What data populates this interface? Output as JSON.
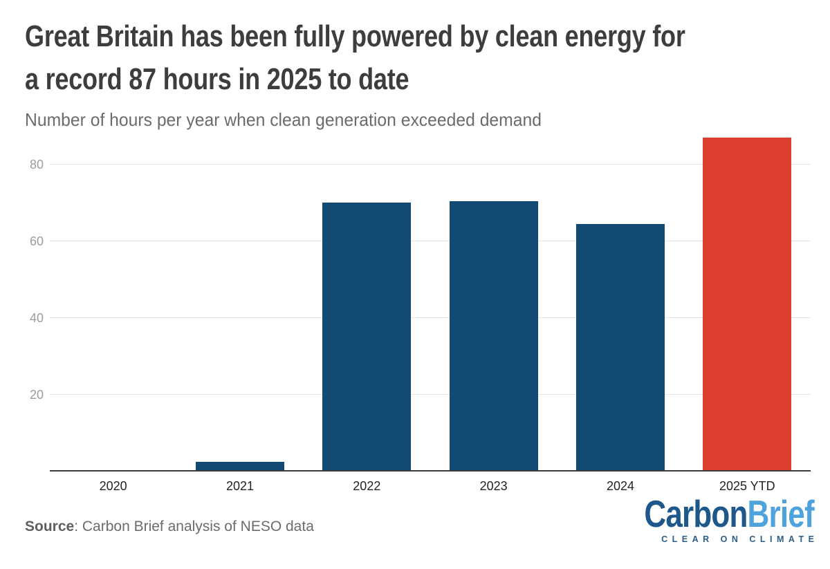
{
  "header": {
    "title_lines": [
      "Great Britain has been fully powered by clean energy for",
      "a record 87 hours in 2025 to date"
    ],
    "subtitle": "Number of hours per year when clean generation exceeded demand"
  },
  "chart_data": {
    "type": "bar",
    "title": "Great Britain has been fully powered by clean energy for a record 87 hours in 2025 to date",
    "subtitle": "Number of hours per year when clean generation exceeded demand",
    "categories": [
      "2020",
      "2021",
      "2022",
      "2023",
      "2024",
      "2025 YTD"
    ],
    "values": [
      0,
      2.5,
      70,
      70.5,
      64.5,
      87
    ],
    "bar_colors": [
      "#134a73",
      "#134a73",
      "#134a73",
      "#134a73",
      "#134a73",
      "#dc3f31"
    ],
    "highlight_index": 5,
    "xlabel": "",
    "ylabel": "",
    "yticks": [
      20,
      40,
      60,
      80
    ],
    "ylim": [
      0,
      88.6
    ],
    "grid": true,
    "legend": "none"
  },
  "footer": {
    "source_label": "Source",
    "source_rest": ": Carbon Brief analysis of NESO data",
    "logo": {
      "part1": "Carbon",
      "part2": "Brief",
      "tagline": "CLEAR ON CLIMATE"
    }
  },
  "colors": {
    "bar_blue": "#134a73",
    "bar_red": "#dc3f31",
    "title_text": "#3d3d3d",
    "subtitle_text": "#6b6b6b",
    "axis_label": "#9c9c9c",
    "x_label": "#232323",
    "gridline": "#e4e4e4",
    "baseline": "#3b3b3b",
    "logo_dark_blue": "#1e578a",
    "logo_light_blue": "#4fa3dd",
    "background": "#ffffff"
  }
}
